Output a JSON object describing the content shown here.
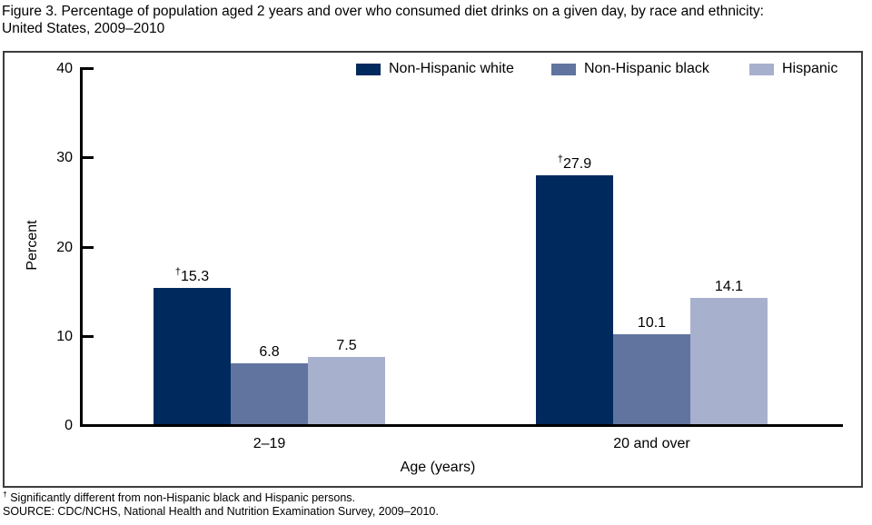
{
  "header": {
    "title_line1": "Figure 3. Percentage of population aged 2 years and over who consumed diet drinks on a given day, by race and ethnicity:",
    "title_line2": "United States, 2009–2010"
  },
  "footnotes": {
    "dagger": "† Significantly different from non-Hispanic black and Hispanic persons.",
    "source": "SOURCE: CDC/NCHS, National Health and Nutrition Examination Survey, 2009–2010."
  },
  "chart_data": {
    "type": "bar",
    "title": "Figure 3. Percentage of population aged 2 years and over who consumed diet drinks on a given day, by race and ethnicity: United States, 2009–2010",
    "categories": [
      "2–19",
      "20 and over"
    ],
    "xlabel": "Age (years)",
    "ylabel": "Percent",
    "ylim": [
      0,
      40
    ],
    "yticks": [
      0,
      10,
      20,
      30,
      40
    ],
    "grid": false,
    "legend_position": "top",
    "series": [
      {
        "name": "Non-Hispanic white",
        "color": "#002a5e",
        "values": [
          15.3,
          27.9
        ],
        "value_labels": [
          "†15.3",
          "†27.9"
        ]
      },
      {
        "name": "Non-Hispanic black",
        "color": "#60749f",
        "values": [
          6.8,
          10.1
        ],
        "value_labels": [
          "6.8",
          "10.1"
        ]
      },
      {
        "name": "Hispanic",
        "color": "#a7b1ce",
        "values": [
          7.5,
          14.1
        ],
        "value_labels": [
          "7.5",
          "14.1"
        ]
      }
    ]
  }
}
